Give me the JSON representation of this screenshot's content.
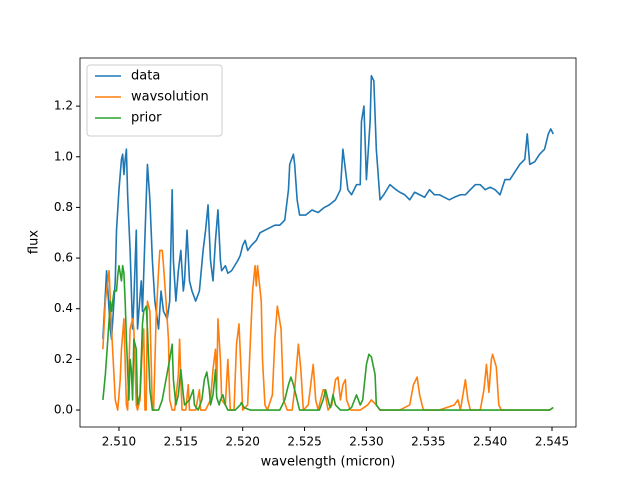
{
  "chart_data": {
    "type": "line",
    "xlabel": "wavelength (micron)",
    "ylabel": "flux",
    "xlim": [
      2.50685,
      2.54694
    ],
    "ylim": [
      -0.067,
      1.39
    ],
    "xticks": [
      {
        "value": 2.51,
        "label": "2.510"
      },
      2.515,
      {
        "value": 2.52,
        "label": "2.520"
      },
      2.525,
      {
        "value": 2.53,
        "label": "2.530"
      },
      2.535,
      {
        "value": 2.54,
        "label": "2.540"
      },
      2.545
    ],
    "yticks": [
      {
        "value": 0,
        "label": "0.0"
      },
      0.2,
      0.4,
      0.6,
      0.8,
      {
        "value": 1,
        "label": "1.0"
      },
      1.2
    ],
    "legend": "upper left",
    "series": [
      {
        "name": "data",
        "color": "#1f77b4",
        "x": [
          2.5087,
          2.509,
          2.5093,
          2.5094,
          2.5097,
          2.5098,
          2.51,
          2.5102,
          2.5103,
          2.5104,
          2.5105,
          2.5106,
          2.5107,
          2.5109,
          2.5111,
          2.5112,
          2.5114,
          2.5115,
          2.5118,
          2.5119,
          2.5122,
          2.5123,
          2.5125,
          2.5127,
          2.5129,
          2.5132,
          2.5134,
          2.5136,
          2.5139,
          2.5141,
          2.5143,
          2.5144,
          2.5146,
          2.5148,
          2.515,
          2.5152,
          2.5153,
          2.5155,
          2.5157,
          2.5159,
          2.5162,
          2.5165,
          2.5168,
          2.517,
          2.5172,
          2.5174,
          2.5176,
          2.5178,
          2.518,
          2.5182,
          2.5183,
          2.5186,
          2.5188,
          2.5191,
          2.5196,
          2.5198,
          2.52,
          2.5202,
          2.5204,
          2.5207,
          2.5211,
          2.5214,
          2.5218,
          2.5222,
          2.5226,
          2.523,
          2.5234,
          2.5237,
          2.5238,
          2.5241,
          2.5242,
          2.5244,
          2.5246,
          2.5251,
          2.5256,
          2.5261,
          2.5266,
          2.527,
          2.5275,
          2.5279,
          2.5281,
          2.5283,
          2.5285,
          2.5288,
          2.5292,
          2.5295,
          2.5296,
          2.5298,
          2.53,
          2.5303,
          2.5304,
          2.5306,
          2.5308,
          2.5311,
          2.5314,
          2.5319,
          2.5324,
          2.5327,
          2.5331,
          2.5335,
          2.5339,
          2.5343,
          2.5347,
          2.5351,
          2.5355,
          2.5359,
          2.5363,
          2.5367,
          2.5371,
          2.5376,
          2.538,
          2.5384,
          2.5388,
          2.5392,
          2.5396,
          2.54,
          2.5404,
          2.5408,
          2.5412,
          2.5416,
          2.542,
          2.5424,
          2.5428,
          2.543,
          2.5432,
          2.5436,
          2.544,
          2.5444,
          2.5447,
          2.5449,
          2.5451
        ],
        "values": [
          0.28,
          0.55,
          0.32,
          0.28,
          0.51,
          0.71,
          0.87,
          0.99,
          1.01,
          0.93,
          0.99,
          1.03,
          0.85,
          0.63,
          0.32,
          0.43,
          0.71,
          0.32,
          0.51,
          0.39,
          0.83,
          0.97,
          0.83,
          0.59,
          0.43,
          0.32,
          0.47,
          0.39,
          0.36,
          0.43,
          0.87,
          0.59,
          0.43,
          0.55,
          0.63,
          0.47,
          0.51,
          0.71,
          0.51,
          0.47,
          0.43,
          0.47,
          0.63,
          0.71,
          0.81,
          0.59,
          0.51,
          0.67,
          0.79,
          0.59,
          0.55,
          0.57,
          0.54,
          0.55,
          0.59,
          0.61,
          0.65,
          0.67,
          0.63,
          0.65,
          0.67,
          0.7,
          0.71,
          0.72,
          0.73,
          0.73,
          0.75,
          0.87,
          0.97,
          1.01,
          0.97,
          0.83,
          0.77,
          0.77,
          0.79,
          0.78,
          0.8,
          0.81,
          0.83,
          0.87,
          1.03,
          0.95,
          0.87,
          0.85,
          0.89,
          0.89,
          1.14,
          1.2,
          0.91,
          1.14,
          1.32,
          1.3,
          1.03,
          0.83,
          0.85,
          0.89,
          0.87,
          0.86,
          0.85,
          0.83,
          0.86,
          0.85,
          0.84,
          0.87,
          0.85,
          0.85,
          0.84,
          0.83,
          0.84,
          0.85,
          0.85,
          0.87,
          0.89,
          0.89,
          0.87,
          0.88,
          0.87,
          0.85,
          0.91,
          0.91,
          0.94,
          0.97,
          0.99,
          1.09,
          0.97,
          0.98,
          1.01,
          1.03,
          1.09,
          1.11,
          1.09
        ]
      },
      {
        "name": "wavsolution",
        "color": "#ff7f0e",
        "x": [
          2.5087,
          2.5089,
          2.5092,
          2.5094,
          2.5097,
          2.5099,
          2.5101,
          2.5102,
          2.5104,
          2.5106,
          2.5107,
          2.5109,
          2.5111,
          2.5112,
          2.5114,
          2.5115,
          2.5117,
          2.5119,
          2.512,
          2.5121,
          2.5122,
          2.5123,
          2.5125,
          2.5127,
          2.5128,
          2.513,
          2.5132,
          2.5133,
          2.5135,
          2.5136,
          2.5138,
          2.514,
          2.5141,
          2.5143,
          2.5145,
          2.5148,
          2.5149,
          2.515,
          2.5151,
          2.5154,
          2.5156,
          2.5157,
          2.5162,
          2.5165,
          2.5166,
          2.517,
          2.5174,
          2.5176,
          2.5178,
          2.5179,
          2.518,
          2.5182,
          2.5183,
          2.5186,
          2.5188,
          2.519,
          2.5193,
          2.5195,
          2.5197,
          2.5199,
          2.52,
          2.5204,
          2.5207,
          2.5208,
          2.521,
          2.5211,
          2.5212,
          2.5215,
          2.5216,
          2.5218,
          2.522,
          2.5224,
          2.5226,
          2.5228,
          2.5231,
          2.5233,
          2.5236,
          2.524,
          2.5242,
          2.5245,
          2.5247,
          2.5249,
          2.5253,
          2.5255,
          2.5257,
          2.5259,
          2.5261,
          2.5262,
          2.5265,
          2.5266,
          2.5269,
          2.5272,
          2.5275,
          2.5277,
          2.5279,
          2.5281,
          2.5283,
          2.5284,
          2.5287,
          2.5295,
          2.5301,
          2.5304,
          2.5308,
          2.5311,
          2.5327,
          2.5335,
          2.5338,
          2.5341,
          2.5343,
          2.5346,
          2.5359,
          2.5371,
          2.5374,
          2.5376,
          2.5378,
          2.538,
          2.5382,
          2.5384,
          2.5392,
          2.5395,
          2.5397,
          2.5399,
          2.5401,
          2.5402,
          2.5405,
          2.5407,
          2.5409,
          2.5448,
          2.5451
        ],
        "values": [
          0.24,
          0.43,
          0.55,
          0.32,
          0.04,
          0.0,
          0.12,
          0.24,
          0.36,
          0.02,
          0.0,
          0.32,
          0.36,
          0.32,
          0.02,
          0.0,
          0.04,
          0.26,
          0.32,
          0.0,
          0.0,
          0.43,
          0.39,
          0.0,
          0.0,
          0.36,
          0.55,
          0.63,
          0.63,
          0.57,
          0.43,
          0.28,
          0.04,
          0.0,
          0.0,
          0.14,
          0.28,
          0.12,
          0.0,
          0.0,
          0.1,
          0.0,
          0.0,
          0.08,
          0.0,
          0.0,
          0.04,
          0.16,
          0.24,
          0.08,
          0.36,
          0.2,
          0.04,
          0.02,
          0.2,
          0.0,
          0.0,
          0.26,
          0.34,
          0.12,
          0.0,
          0.02,
          0.36,
          0.47,
          0.57,
          0.49,
          0.57,
          0.43,
          0.2,
          0.02,
          0.0,
          0.06,
          0.28,
          0.41,
          0.32,
          0.04,
          0.0,
          0.0,
          0.08,
          0.26,
          0.16,
          0.0,
          0.02,
          0.1,
          0.18,
          0.04,
          0.0,
          0.02,
          0.08,
          0.08,
          0.0,
          0.02,
          0.12,
          0.13,
          0.04,
          0.1,
          0.12,
          0.04,
          0.0,
          0.0,
          0.02,
          0.04,
          0.02,
          0.0,
          0.0,
          0.02,
          0.1,
          0.13,
          0.06,
          0.0,
          0.0,
          0.02,
          0.04,
          0.0,
          0.06,
          0.12,
          0.04,
          0.0,
          0.0,
          0.08,
          0.18,
          0.07,
          0.2,
          0.22,
          0.17,
          0.02,
          0.0,
          0.0,
          0.01
        ]
      },
      {
        "name": "prior",
        "color": "#2ca02c",
        "x": [
          2.5087,
          2.5089,
          2.5091,
          2.5093,
          2.5094,
          2.5096,
          2.5098,
          2.5099,
          2.51,
          2.5102,
          2.5103,
          2.5104,
          2.5105,
          2.5106,
          2.5108,
          2.5109,
          2.511,
          2.5111,
          2.5112,
          2.5114,
          2.5115,
          2.5117,
          2.5119,
          2.512,
          2.5122,
          2.5123,
          2.5125,
          2.5127,
          2.5132,
          2.5135,
          2.5138,
          2.5141,
          2.5143,
          2.5144,
          2.5146,
          2.5148,
          2.515,
          2.5152,
          2.5153,
          2.5157,
          2.516,
          2.5161,
          2.5164,
          2.5167,
          2.5169,
          2.5171,
          2.5173,
          2.5174,
          2.5176,
          2.5178,
          2.5179,
          2.5181,
          2.5182,
          2.5184,
          2.5186,
          2.5188,
          2.5194,
          2.5198,
          2.5199,
          2.5201,
          2.5206,
          2.523,
          2.5234,
          2.5237,
          2.5239,
          2.5241,
          2.5244,
          2.5246,
          2.5262,
          2.5265,
          2.5267,
          2.527,
          2.5271,
          2.5273,
          2.5275,
          2.5279,
          2.5285,
          2.5288,
          2.5292,
          2.5295,
          2.5297,
          2.53,
          2.5302,
          2.5304,
          2.5307,
          2.5308,
          2.5311,
          2.5448,
          2.5451
        ],
        "values": [
          0.04,
          0.14,
          0.28,
          0.43,
          0.39,
          0.47,
          0.47,
          0.53,
          0.57,
          0.51,
          0.57,
          0.54,
          0.43,
          0.28,
          0.04,
          0.2,
          0.16,
          0.04,
          0.28,
          0.24,
          0.02,
          0.06,
          0.34,
          0.39,
          0.41,
          0.32,
          0.08,
          0.0,
          0.0,
          0.04,
          0.12,
          0.2,
          0.26,
          0.12,
          0.02,
          0.06,
          0.16,
          0.06,
          0.02,
          0.04,
          0.08,
          0.02,
          0.0,
          0.04,
          0.12,
          0.15,
          0.08,
          0.02,
          0.06,
          0.16,
          0.05,
          0.02,
          0.04,
          0.06,
          0.02,
          0.0,
          0.0,
          0.02,
          0.03,
          0.01,
          0.0,
          0.0,
          0.04,
          0.1,
          0.13,
          0.1,
          0.04,
          0.0,
          0.0,
          0.04,
          0.08,
          0.02,
          0.01,
          0.06,
          0.02,
          0.0,
          0.0,
          0.01,
          0.06,
          0.02,
          0.04,
          0.18,
          0.22,
          0.21,
          0.14,
          0.02,
          0.0,
          0.0,
          0.01
        ]
      }
    ]
  }
}
